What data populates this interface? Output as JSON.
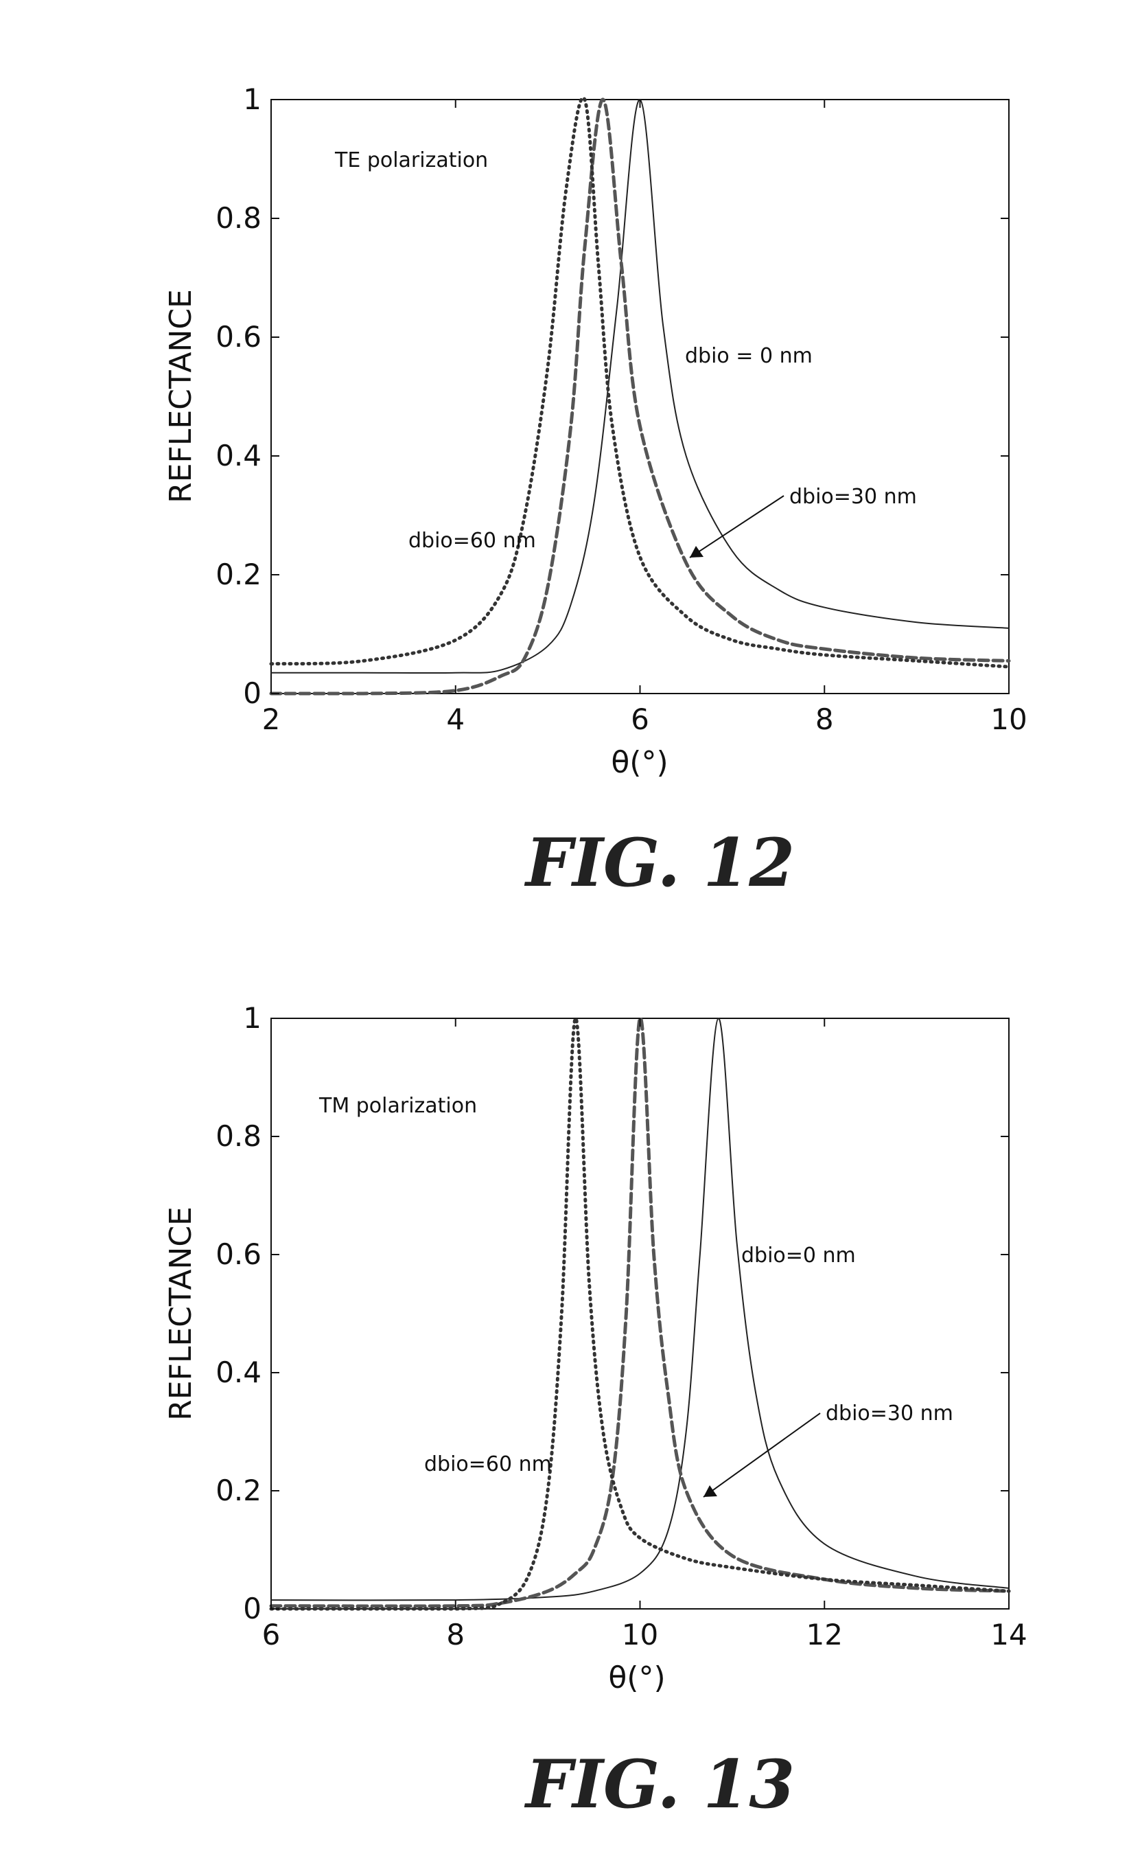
{
  "chart_data": [
    {
      "type": "line",
      "figure_label": "FIG. 12",
      "xlabel": "θ(°)",
      "ylabel": "REFLECTANCE",
      "xlim": [
        2,
        10
      ],
      "ylim": [
        0,
        1
      ],
      "xticks": [
        "2",
        "4",
        "6",
        "8",
        "10"
      ],
      "yticks": [
        "0",
        "0.2",
        "0.4",
        "0.6",
        "0.8",
        "1"
      ],
      "grid": false,
      "annotations": {
        "polarization": "TE polarization",
        "d0": "dbio = 0 nm",
        "d30": "dbio=30 nm",
        "d60": "dbio=60 nm"
      },
      "series": [
        {
          "style": "solid",
          "color": "#222222",
          "x": [
            2,
            3,
            4,
            4.5,
            5,
            5.25,
            5.5,
            5.75,
            6,
            6.25,
            6.5,
            7,
            7.5,
            8,
            9,
            10
          ],
          "y": [
            0.035,
            0.035,
            0.035,
            0.04,
            0.08,
            0.15,
            0.32,
            0.65,
            1.0,
            0.62,
            0.4,
            0.24,
            0.175,
            0.145,
            0.12,
            0.11
          ]
        },
        {
          "style": "dashed",
          "color": "#555555",
          "x": [
            2,
            3,
            4,
            4.5,
            4.75,
            5,
            5.25,
            5.4,
            5.6,
            5.8,
            6,
            6.5,
            7,
            7.5,
            8,
            9,
            10
          ],
          "y": [
            0.0,
            0.0,
            0.005,
            0.03,
            0.06,
            0.18,
            0.45,
            0.75,
            1.0,
            0.72,
            0.45,
            0.22,
            0.13,
            0.09,
            0.075,
            0.06,
            0.055
          ]
        },
        {
          "style": "dotted",
          "color": "#333333",
          "x": [
            2,
            3,
            4,
            4.5,
            4.75,
            5,
            5.2,
            5.4,
            5.55,
            5.7,
            6,
            6.5,
            7,
            7.5,
            8,
            9,
            10
          ],
          "y": [
            0.05,
            0.055,
            0.09,
            0.17,
            0.3,
            0.55,
            0.85,
            1.0,
            0.72,
            0.45,
            0.23,
            0.13,
            0.09,
            0.075,
            0.065,
            0.055,
            0.045
          ]
        }
      ]
    },
    {
      "type": "line",
      "figure_label": "FIG. 13",
      "xlabel": "θ(°)",
      "ylabel": "REFLECTANCE",
      "xlim": [
        6,
        14
      ],
      "ylim": [
        0,
        1
      ],
      "xticks": [
        "6",
        "8",
        "10",
        "12",
        "14"
      ],
      "yticks": [
        "0",
        "0.2",
        "0.4",
        "0.6",
        "0.8",
        "1"
      ],
      "grid": false,
      "annotations": {
        "polarization": "TM polarization",
        "d0": "dbio=0 nm",
        "d30": "dbio=30 nm",
        "d60": "dbio=60 nm"
      },
      "series": [
        {
          "style": "solid",
          "color": "#222222",
          "x": [
            6,
            8,
            9,
            9.5,
            10,
            10.3,
            10.5,
            10.65,
            10.85,
            11.05,
            11.25,
            11.5,
            12,
            13,
            14
          ],
          "y": [
            0.015,
            0.015,
            0.02,
            0.03,
            0.06,
            0.13,
            0.3,
            0.6,
            1.0,
            0.62,
            0.37,
            0.22,
            0.11,
            0.055,
            0.035
          ]
        },
        {
          "style": "dashed",
          "color": "#555555",
          "x": [
            6,
            8,
            8.5,
            9,
            9.3,
            9.5,
            9.7,
            9.85,
            10,
            10.15,
            10.3,
            10.5,
            11,
            12,
            13,
            14
          ],
          "y": [
            0.005,
            0.005,
            0.01,
            0.03,
            0.06,
            0.1,
            0.22,
            0.5,
            1.0,
            0.6,
            0.37,
            0.2,
            0.09,
            0.05,
            0.035,
            0.03
          ]
        },
        {
          "style": "dotted",
          "color": "#333333",
          "x": [
            6,
            8,
            8.5,
            8.8,
            9.0,
            9.15,
            9.3,
            9.45,
            9.6,
            9.8,
            10,
            10.5,
            11,
            12,
            13,
            14
          ],
          "y": [
            0.0,
            0.0,
            0.01,
            0.06,
            0.2,
            0.5,
            1.0,
            0.55,
            0.3,
            0.17,
            0.12,
            0.085,
            0.07,
            0.05,
            0.04,
            0.03
          ]
        }
      ]
    }
  ]
}
